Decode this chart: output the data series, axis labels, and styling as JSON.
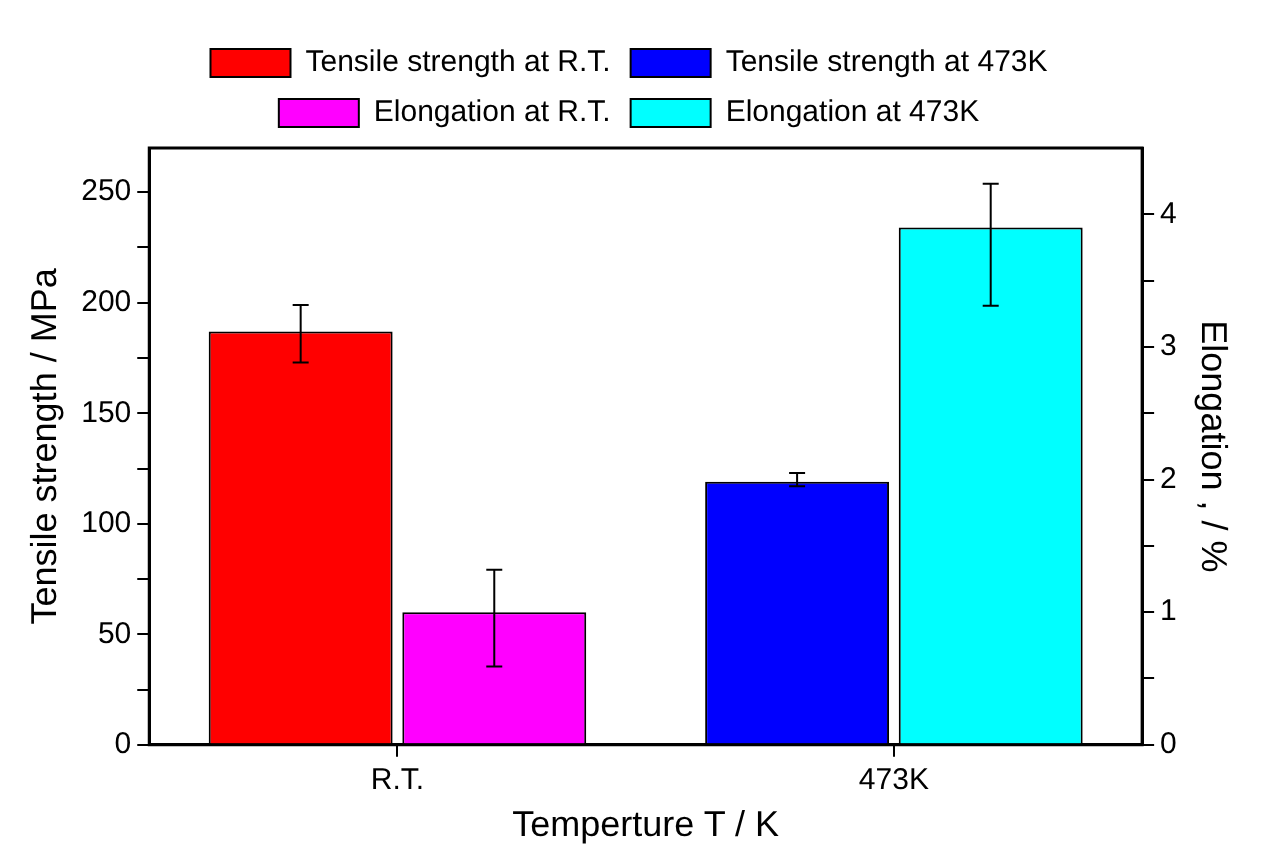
{
  "chart_data": {
    "type": "bar",
    "xlabel": "Temperture T / K",
    "ylabel": "Tensile strength / MPa",
    "y2label": "Elongation , / %",
    "categories": [
      "R.T.",
      "473K"
    ],
    "series": [
      {
        "name": "Tensile strength at R.T.",
        "color": "#ff0000",
        "values": [
          187,
          null
        ],
        "errors": [
          [
            173,
            199
          ],
          null
        ]
      },
      {
        "name": "Tensile strength at 473K",
        "color": "#0000ff",
        "values": [
          null,
          119
        ],
        "errors": [
          null,
          [
            117,
            123
          ]
        ]
      },
      {
        "name": "Elongation at R.T.",
        "color": "#ff00ff",
        "axis": "y2",
        "values": [
          1.0,
          null
        ],
        "errors": [
          [
            0.59,
            1.32
          ],
          null
        ]
      },
      {
        "name": "Elongation at 473K",
        "color": "#00ffff",
        "axis": "y2",
        "values": [
          null,
          3.9
        ],
        "errors": [
          null,
          [
            3.31,
            4.23
          ]
        ]
      }
    ],
    "ylim": [
      0,
      270
    ],
    "yticks": [
      0,
      {
        "value": 25,
        "label": null
      },
      50,
      {
        "value": 75,
        "label": null
      },
      100,
      {
        "value": 125,
        "label": null
      },
      150,
      {
        "value": 175,
        "label": null
      },
      200,
      {
        "value": 225,
        "label": null
      },
      250
    ],
    "y2lim": [
      0,
      4.5
    ],
    "y2ticks": [
      0,
      {
        "value": 0.5,
        "label": null
      },
      1,
      {
        "value": 1.5,
        "label": null
      },
      2,
      {
        "value": 2.5,
        "label": null
      },
      3,
      {
        "value": 3.5,
        "label": null
      },
      4
    ],
    "legend": "top",
    "grid": false
  }
}
